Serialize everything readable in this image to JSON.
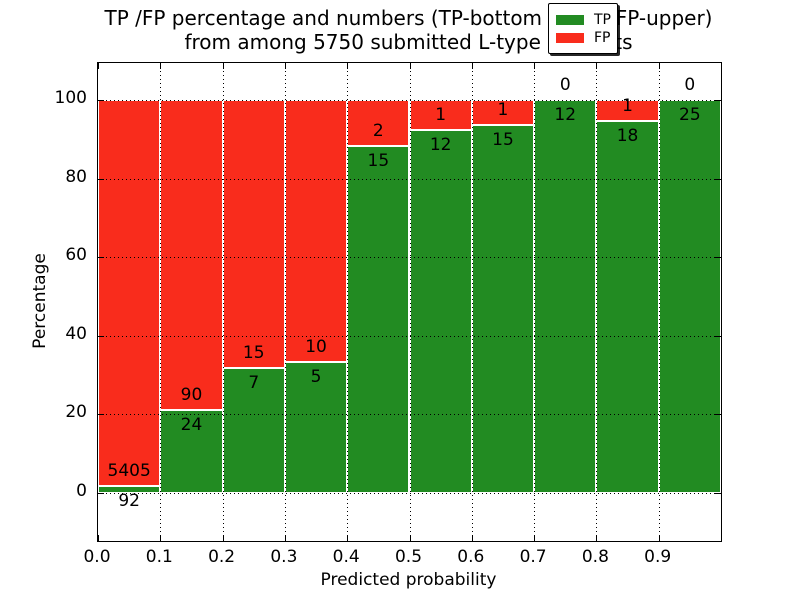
{
  "figure": {
    "title_line1": "TP /FP percentage and numbers (TP-bottom value, FP-upper)",
    "title_line2": "from among 5750 submitted L-type contacts"
  },
  "chart_data": {
    "type": "bar",
    "stacked": true,
    "title": "TP /FP percentage and numbers (TP-bottom value, FP-upper)\nfrom among 5750 submitted L-type contacts",
    "xlabel": "Predicted probability",
    "ylabel": "Percentage",
    "total_contacts": 5750,
    "bin_edges": [
      0.0,
      0.1,
      0.2,
      0.3,
      0.4,
      0.5,
      0.6,
      0.7,
      0.8,
      0.9,
      1.0
    ],
    "categories": [
      "0.0-0.1",
      "0.1-0.2",
      "0.2-0.3",
      "0.3-0.4",
      "0.4-0.5",
      "0.5-0.6",
      "0.6-0.7",
      "0.7-0.8",
      "0.8-0.9",
      "0.9-1.0"
    ],
    "series": [
      {
        "name": "TP",
        "color": "#228B22",
        "counts": [
          92,
          24,
          7,
          5,
          15,
          12,
          15,
          12,
          18,
          25
        ],
        "percent": [
          1.7,
          21.1,
          31.8,
          33.3,
          88.2,
          92.3,
          93.8,
          100.0,
          94.7,
          100.0
        ]
      },
      {
        "name": "FP",
        "color": "#F92C1C",
        "counts": [
          5405,
          90,
          15,
          10,
          2,
          1,
          1,
          0,
          1,
          0
        ],
        "percent": [
          98.3,
          78.9,
          68.2,
          66.7,
          11.8,
          7.7,
          6.2,
          0.0,
          5.3,
          0.0
        ]
      }
    ],
    "x_tick_labels": [
      "0.0",
      "0.1",
      "0.2",
      "0.3",
      "0.4",
      "0.5",
      "0.6",
      "0.7",
      "0.8",
      "0.9"
    ],
    "y_ticks": [
      0,
      20,
      40,
      60,
      80,
      100
    ],
    "y_tick_labels": [
      "0",
      "20",
      "40",
      "60",
      "80",
      "100"
    ],
    "xlim": [
      0.0,
      1.0
    ],
    "ylim": [
      -12,
      109
    ],
    "grid": "dotted",
    "edge_color": "#ffffff",
    "legend": {
      "position": "upper right",
      "entries": [
        {
          "label": "TP",
          "color": "#228B22"
        },
        {
          "label": "FP",
          "color": "#F92C1C"
        }
      ]
    }
  }
}
